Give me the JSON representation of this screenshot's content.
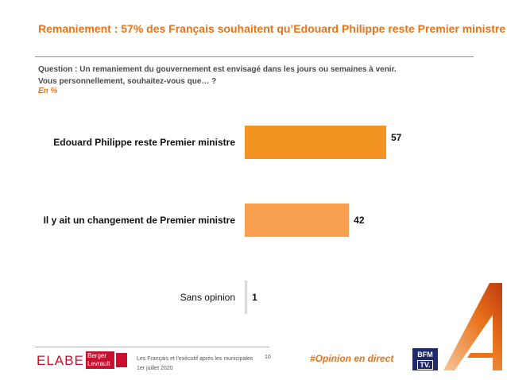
{
  "title": "Remaniement : 57% des Français souhaitent qu’Edouard Philippe reste Premier ministre",
  "question": {
    "line1": "Question : Un remaniement du gouvernement est envisagé dans les jours ou semaines à venir.",
    "line2": "Vous personnellement, souhaitez-vous que… ?",
    "unit": "En %"
  },
  "chart_data": {
    "type": "bar",
    "orientation": "horizontal",
    "categories": [
      "Edouard Philippe reste Premier ministre",
      "Il y ait un changement de Premier ministre",
      "Sans opinion"
    ],
    "values": [
      57,
      42,
      1
    ],
    "value_labels": [
      "57",
      "42",
      "1"
    ],
    "bold_categories": [
      true,
      true,
      false
    ],
    "colors": [
      "#F39321",
      "#F7A050",
      "#D9D9D9"
    ],
    "xlim": [
      0,
      100
    ],
    "grid": false,
    "legend": "none"
  },
  "footer": {
    "logo_elabe": "ELABE",
    "logo_berger_line1": "Berger",
    "logo_berger_line2": "Levrault",
    "text_line1": "Les Français et l’exécutif après les municipales",
    "text_line2": "1er juillet 2020",
    "page_number": "10",
    "hashtag": "#Opinion en direct",
    "bfm_line1": "BFM",
    "bfm_line2": "TV."
  },
  "colors": {
    "accent": "#E8731A",
    "bfm_navy": "#1F2A6B",
    "berger_red": "#C8102E"
  }
}
